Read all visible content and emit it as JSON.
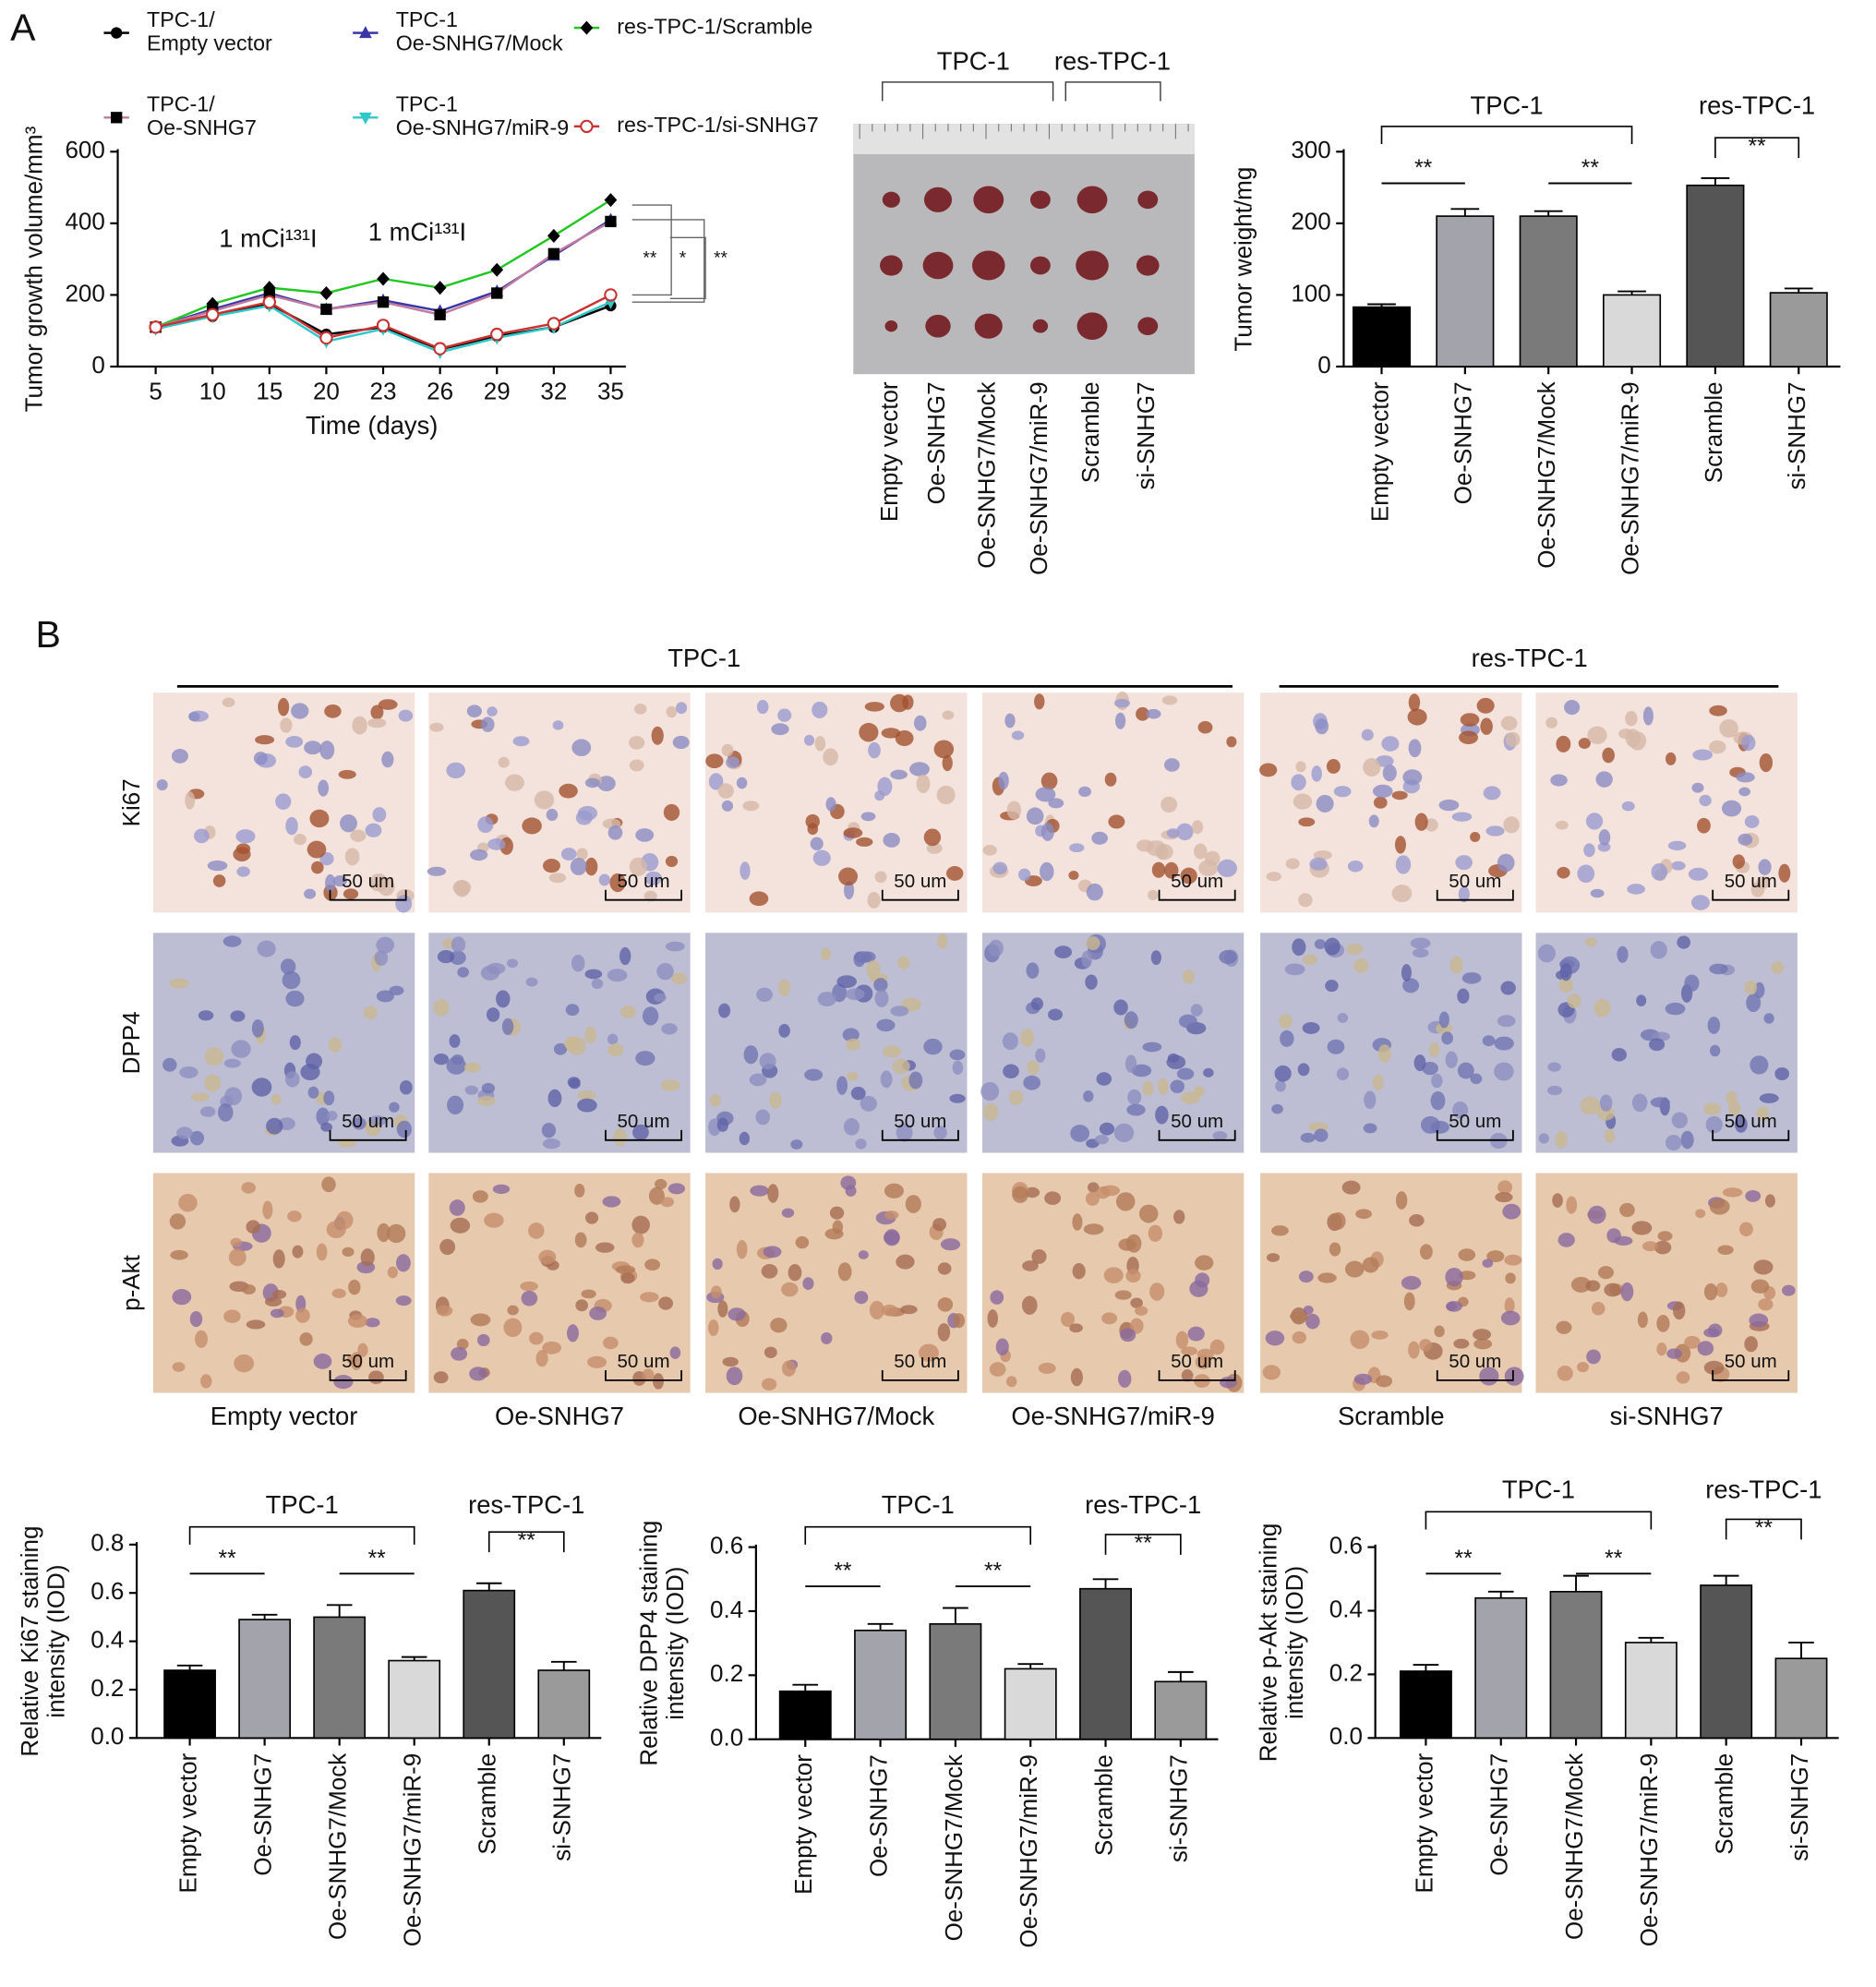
{
  "figure": {
    "panel_a": "A",
    "panel_b": "B",
    "tumor_photo": {
      "groups": [
        "TPC-1",
        "res-TPC-1"
      ],
      "columns": [
        "Empty vector",
        "Oe-SNHG7",
        "Oe-SNHG7/Mock",
        "Oe-SNHG7/miR-9",
        "Scramble",
        "si-SNHG7"
      ]
    },
    "ihc": {
      "groups": [
        "TPC-1",
        "res-TPC-1"
      ],
      "rows": [
        "Ki67",
        "DPP4",
        "p-Akt"
      ],
      "columns": [
        "Empty vector",
        "Oe-SNHG7",
        "Oe-SNHG7/Mock",
        "Oe-SNHG7/miR-9",
        "Scramble",
        "si-SNHG7"
      ],
      "scale_label": "50 um"
    }
  },
  "chart_data": [
    {
      "type": "line",
      "ylabel": "Tumor growth volume/mm³",
      "xlabel": "Time (days)",
      "categories": [
        "5",
        "10",
        "15",
        "20",
        "23",
        "26",
        "29",
        "32",
        "35"
      ],
      "ylim": [
        0,
        600
      ],
      "yticks": [
        0,
        200,
        400,
        600
      ],
      "annotations": [
        "1 mCi¹³¹I",
        "1 mCi¹³¹I"
      ],
      "significance": [
        "**",
        "*",
        "**"
      ],
      "series": [
        {
          "name": "TPC-1/\nEmpty vector",
          "color": "#000000",
          "marker": "circle",
          "values": [
            110,
            140,
            175,
            90,
            110,
            48,
            85,
            110,
            170
          ]
        },
        {
          "name": "TPC-1\nOe-SNHG7/Mock",
          "color": "#3a36a8",
          "marker": "triangle",
          "values": [
            110,
            160,
            205,
            160,
            185,
            155,
            210,
            310,
            410
          ]
        },
        {
          "name": "res-TPC-1/Scramble",
          "color": "#22c722",
          "marker": "diamond",
          "values": [
            110,
            175,
            220,
            205,
            245,
            220,
            270,
            365,
            465
          ]
        },
        {
          "name": "TPC-1/\nOe-SNHG7",
          "color": "#c07aa0",
          "marker": "square",
          "values": [
            110,
            155,
            200,
            160,
            180,
            145,
            205,
            315,
            405
          ]
        },
        {
          "name": "TPC-1\nOe-SNHG7/miR-9",
          "color": "#30c8c8",
          "marker": "triangle-down",
          "values": [
            105,
            140,
            170,
            70,
            105,
            40,
            80,
            110,
            180
          ]
        },
        {
          "name": "res-TPC-1/si-SNHG7",
          "color": "#c83232",
          "marker": "open-circle",
          "values": [
            110,
            145,
            180,
            80,
            115,
            50,
            90,
            120,
            200
          ]
        }
      ]
    },
    {
      "type": "bar",
      "ylabel": "Tumor weight/mg",
      "categories": [
        "Empty vector",
        "Oe-SNHG7",
        "Oe-SNHG7/Mock",
        "Oe-SNHG7/miR-9",
        "Scramble",
        "si-SNHG7"
      ],
      "values": [
        83,
        210,
        210,
        100,
        253,
        103
      ],
      "errors": [
        4,
        10,
        7,
        5,
        10,
        6
      ],
      "colors": [
        "#000000",
        "#a3a3ab",
        "#7a7a7a",
        "#d9d9d9",
        "#555555",
        "#9a9a9a"
      ],
      "ylim": [
        0,
        300
      ],
      "yticks": [
        0,
        100,
        200,
        300
      ],
      "groups": [
        "TPC-1",
        "res-TPC-1"
      ],
      "significance": [
        "**",
        "**",
        "**"
      ]
    },
    {
      "type": "bar",
      "ylabel": "Relative Ki67 staining\nintensity (IOD)",
      "categories": [
        "Empty vector",
        "Oe-SNHG7",
        "Oe-SNHG7/Mock",
        "Oe-SNHG7/miR-9",
        "Scramble",
        "si-SNHG7"
      ],
      "values": [
        0.28,
        0.49,
        0.5,
        0.32,
        0.61,
        0.28
      ],
      "errors": [
        0.02,
        0.02,
        0.05,
        0.015,
        0.03,
        0.035
      ],
      "colors": [
        "#000000",
        "#a3a3ab",
        "#7a7a7a",
        "#d9d9d9",
        "#555555",
        "#9a9a9a"
      ],
      "ylim": [
        0,
        0.8
      ],
      "yticks": [
        {
          "value": 0,
          "label": "0.0"
        },
        0.2,
        0.4,
        0.6,
        0.8
      ],
      "groups": [
        "TPC-1",
        "res-TPC-1"
      ],
      "significance": [
        "**",
        "**",
        "**"
      ]
    },
    {
      "type": "bar",
      "ylabel": "Relative DPP4 staining\nintensity (IOD)",
      "categories": [
        "Empty vector",
        "Oe-SNHG7",
        "Oe-SNHG7/Mock",
        "Oe-SNHG7/miR-9",
        "Scramble",
        "si-SNHG7"
      ],
      "values": [
        0.15,
        0.34,
        0.36,
        0.22,
        0.47,
        0.18
      ],
      "errors": [
        0.02,
        0.02,
        0.05,
        0.015,
        0.03,
        0.03
      ],
      "colors": [
        "#000000",
        "#a3a3ab",
        "#7a7a7a",
        "#d9d9d9",
        "#555555",
        "#9a9a9a"
      ],
      "ylim": [
        0,
        0.6
      ],
      "yticks": [
        {
          "value": 0,
          "label": "0.0"
        },
        0.2,
        0.4,
        0.6
      ],
      "groups": [
        "TPC-1",
        "res-TPC-1"
      ],
      "significance": [
        "**",
        "**",
        "**"
      ]
    },
    {
      "type": "bar",
      "ylabel": "Relative p-Akt staining\nintensity (IOD)",
      "categories": [
        "Empty vector",
        "Oe-SNHG7",
        "Oe-SNHG7/Mock",
        "Oe-SNHG7/miR-9",
        "Scramble",
        "si-SNHG7"
      ],
      "values": [
        0.21,
        0.44,
        0.46,
        0.3,
        0.48,
        0.25
      ],
      "errors": [
        0.02,
        0.02,
        0.05,
        0.015,
        0.03,
        0.05
      ],
      "colors": [
        "#000000",
        "#a3a3ab",
        "#7a7a7a",
        "#d9d9d9",
        "#555555",
        "#9a9a9a"
      ],
      "ylim": [
        0,
        0.6
      ],
      "yticks": [
        {
          "value": 0,
          "label": "0.0"
        },
        0.2,
        0.4,
        0.6
      ],
      "groups": [
        "TPC-1",
        "res-TPC-1"
      ],
      "significance": [
        "**",
        "**",
        "**"
      ]
    }
  ]
}
